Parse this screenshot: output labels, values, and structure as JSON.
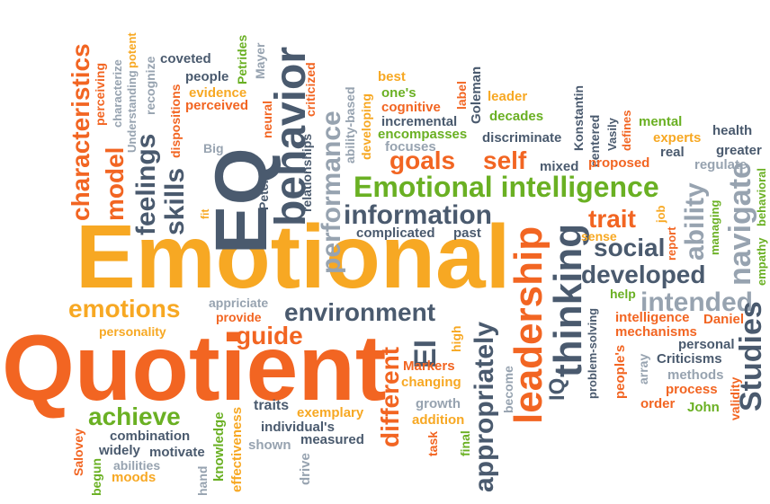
{
  "colors": {
    "orange": "#f26522",
    "gold": "#f7a823",
    "green": "#6ab023",
    "blue": "#4a5a6e",
    "grey": "#97a3b0",
    "background": "#ffffff"
  },
  "words": {
    "emotional": "Emotional",
    "quotient": "Quotient",
    "eq": "EQ",
    "behavior": "behavior",
    "emotional_intelligence": "Emotional intelligence",
    "leadership": "leadership",
    "thinking": "thinking",
    "information": "information",
    "environment": "environment",
    "performance": "performance",
    "appropriately": "appropriately",
    "different": "different",
    "emotions": "emotions",
    "achieve": "achieve",
    "goals": "goals",
    "self": "self",
    "trait": "trait",
    "social": "social",
    "developed": "developed",
    "intended": "intended",
    "studies": "Studies",
    "navigate": "navigate",
    "ability": "ability",
    "characteristics": "characteristics",
    "model": "model",
    "feelings": "feelings",
    "skills": "skills",
    "guide": "guide",
    "ei": "EI",
    "combination": "combination",
    "widely": "widely",
    "motivate": "motivate",
    "moods": "moods",
    "abilities": "abilities",
    "salovey": "Salovey",
    "begun": "begun",
    "hand": "hand",
    "knowledge": "knowledge",
    "effectiveness": "effectiveness",
    "traits": "traits",
    "exemplary": "exemplary",
    "individuals": "individual's",
    "measured": "measured",
    "shown": "shown",
    "drive": "drive",
    "growth": "growth",
    "addition": "addition",
    "task": "task",
    "final": "final",
    "changing": "changing",
    "markers": "Markers",
    "high": "high",
    "become": "become",
    "iq": "IQ",
    "problem_solving": "problem-solving",
    "peoples": "people's",
    "array": "array",
    "methods": "methods",
    "process": "process",
    "order": "order",
    "john": "John",
    "validity": "validity",
    "criticisms": "Criticisms",
    "personal": "personal",
    "mechanisms": "mechanisms",
    "intelligence": "intelligence",
    "daniel": "Daniel",
    "help": "help",
    "empathy": "empathy",
    "behavioral": "behavioral",
    "managing": "managing",
    "report": "report",
    "job": "job",
    "sense": "sense",
    "regulate": "regulate",
    "greater": "greater",
    "real": "real",
    "health": "health",
    "mental": "mental",
    "experts": "experts",
    "defines": "defines",
    "vasily": "Vasily",
    "centered": "centered",
    "konstantin": "Konstantin",
    "proposed": "proposed",
    "mixed": "mixed",
    "discriminate": "discriminate",
    "decades": "decades",
    "leader": "leader",
    "goleman": "Goleman",
    "label": "label",
    "best": "best",
    "ones": "one's",
    "cognitive": "cognitive",
    "incremental": "incremental",
    "encompasses": "encompasses",
    "focuses": "focuses",
    "developing": "developing",
    "ability_based": "ability-based",
    "relationships": "relationships",
    "criticized": "criticized",
    "peter": "Peter",
    "neural": "neural",
    "mayer": "Mayer",
    "petrides": "Petrides",
    "people": "people",
    "coveted": "coveted",
    "evidence": "evidence",
    "perceived": "perceived",
    "big": "Big",
    "fit": "fit",
    "dispositions": "dispositions",
    "recognize": "recognize",
    "potent": "potent",
    "understanding": "Understanding",
    "characterize": "characterize",
    "perceiving": "perceiving",
    "appriciate": "appriciate",
    "provide": "provide",
    "personality": "personality",
    "complicated": "complicated",
    "past": "past"
  }
}
